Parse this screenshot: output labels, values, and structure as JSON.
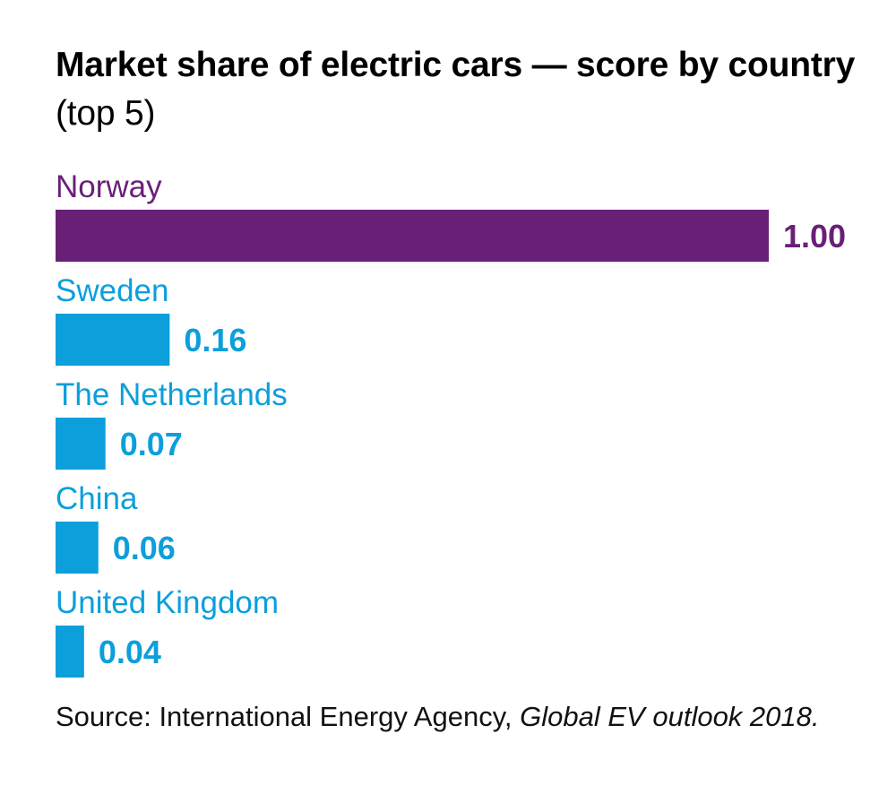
{
  "colors": {
    "highlight": "#6a1f77",
    "default": "#0c9fdb",
    "title": "#000000"
  },
  "title": {
    "bold": "Market share of electric cars — score by country",
    "suffix": "(top 5)"
  },
  "source": {
    "prefix": "Source: International Energy Agency,",
    "italic": "Global EV outlook 2018."
  },
  "chart_data": {
    "type": "bar",
    "orientation": "horizontal",
    "title": "Market share of electric cars — score by country (top 5)",
    "categories": [
      "Norway",
      "Sweden",
      "The Netherlands",
      "China",
      "United Kingdom"
    ],
    "values": [
      1.0,
      0.16,
      0.07,
      0.06,
      0.04
    ],
    "value_labels": [
      "1.00",
      "0.16",
      "0.07",
      "0.06",
      "0.04"
    ],
    "highlight": "Norway",
    "xlim": [
      0,
      1
    ],
    "grid": false,
    "xlabel": "",
    "ylabel": ""
  }
}
